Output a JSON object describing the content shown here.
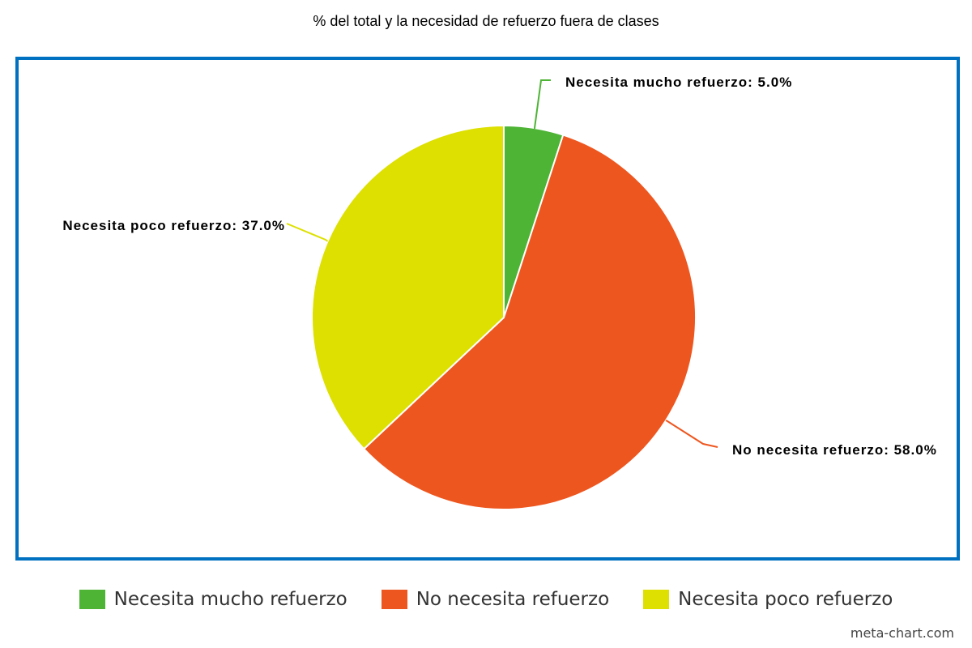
{
  "chart_data": {
    "type": "pie",
    "title": "% del total y la necesidad de refuerzo fuera de clases",
    "slices": [
      {
        "name": "Necesita mucho refuerzo",
        "value": 5.0,
        "label": "Necesita mucho refuerzo: 5.0%",
        "color": "#4db435"
      },
      {
        "name": "No necesita refuerzo",
        "value": 58.0,
        "label": "No necesita refuerzo: 58.0%",
        "color": "#ee561f"
      },
      {
        "name": "Necesita poco refuerzo",
        "value": 37.0,
        "label": "Necesita poco refuerzo: 37.0%",
        "color": "#dde000"
      }
    ],
    "legend_position": "bottom",
    "start_angle": "12 o'clock, clockwise"
  },
  "frame_color": "#0070c0",
  "watermark": "meta-chart.com"
}
